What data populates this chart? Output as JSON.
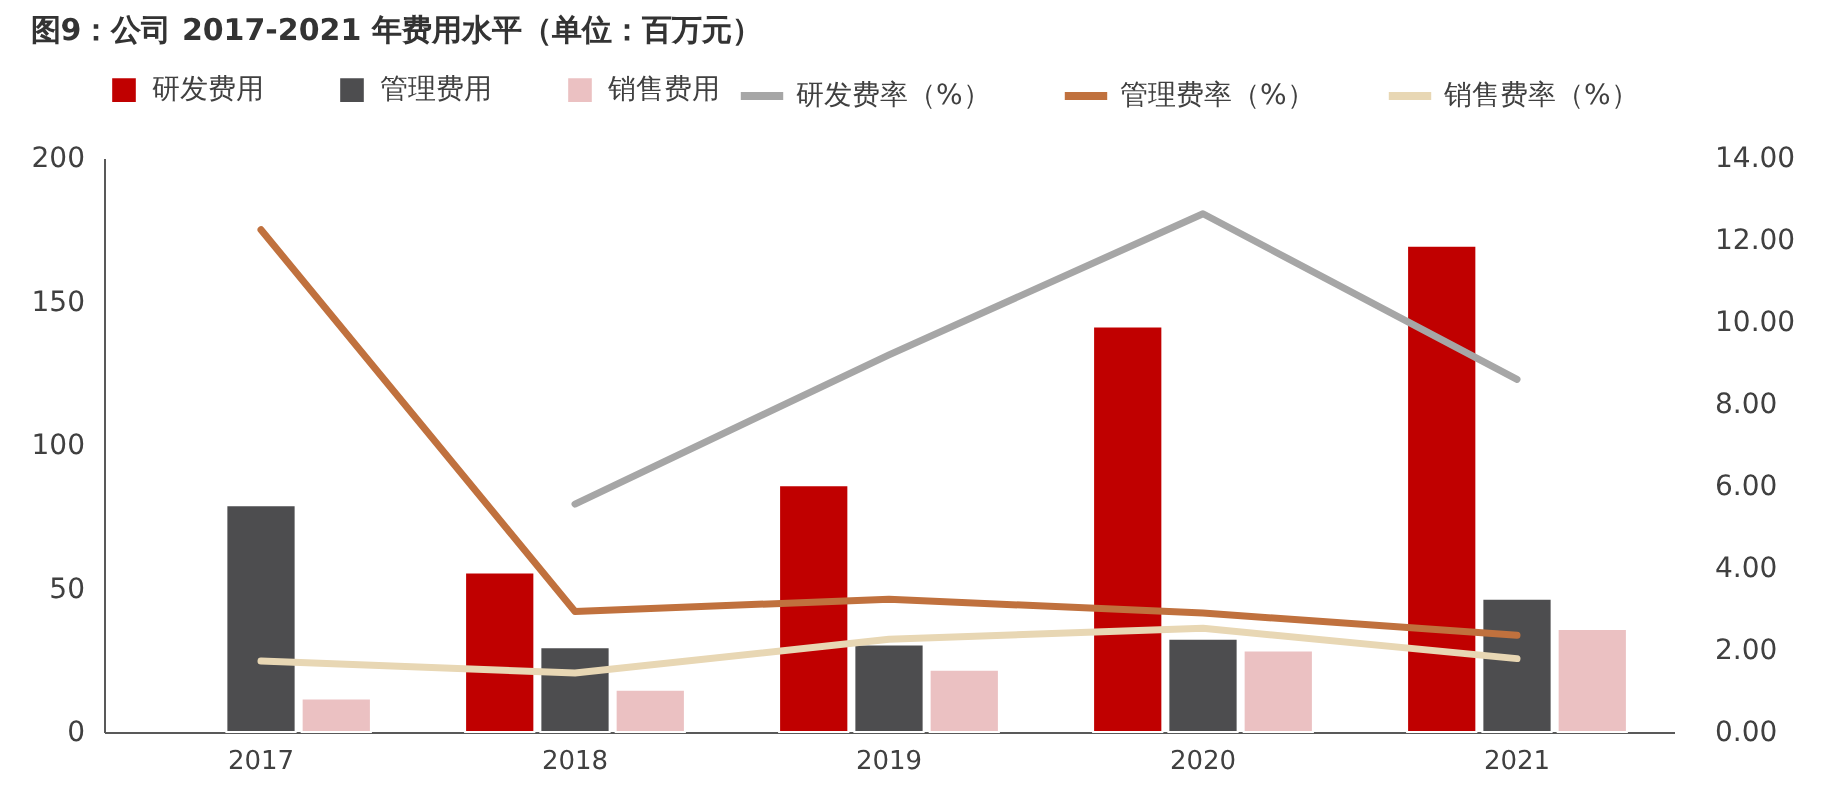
{
  "chart_data": {
    "type": "bar",
    "title": "图9：公司 2017-2021 年费用水平（单位：百万元）",
    "categories": [
      "2017",
      "2018",
      "2019",
      "2020",
      "2021"
    ],
    "series": [
      {
        "name": "研发费用",
        "color": "#c00000",
        "values": [
          null,
          55.6,
          86,
          141.3,
          169.4
        ]
      },
      {
        "name": "管理费用",
        "color": "#4d4d4f",
        "values": [
          79,
          29.5,
          30.5,
          32.5,
          46.4
        ]
      },
      {
        "name": "销售费用",
        "color": "#ebc1c2",
        "values": [
          11.7,
          14.7,
          21.7,
          28.4,
          35.9
        ]
      },
      {
        "name": "研发费率（%）",
        "type": "line",
        "axis": "y2",
        "color": "#a6a6a6",
        "values": [
          null,
          5.56,
          9.2,
          12.64,
          8.6
        ]
      },
      {
        "name": "管理费率（%）",
        "type": "line",
        "axis": "y2",
        "color": "#c0713e",
        "values": [
          12.25,
          2.94,
          3.24,
          2.9,
          2.36
        ]
      },
      {
        "name": "销售费率（%）",
        "type": "line",
        "axis": "y2",
        "color": "#e8d7b4",
        "values": [
          1.73,
          1.44,
          2.26,
          2.53,
          1.79
        ]
      }
    ],
    "ylim": [
      0,
      200
    ],
    "yticks": [
      0,
      50,
      100,
      150,
      200
    ],
    "y2lim": [
      0,
      14
    ],
    "y2ticks": [
      {
        "value": 0,
        "label": "0.00"
      },
      {
        "value": 2,
        "label": "2.00"
      },
      {
        "value": 4,
        "label": "4.00"
      },
      {
        "value": 6,
        "label": "6.00"
      },
      {
        "value": 8,
        "label": "8.00"
      },
      {
        "value": 10,
        "label": "10.00"
      },
      {
        "value": 12,
        "label": "12.00"
      },
      {
        "value": 14,
        "label": "14.00"
      }
    ],
    "grid": false,
    "legend": "top",
    "line_style": "solid",
    "marker": "none"
  }
}
